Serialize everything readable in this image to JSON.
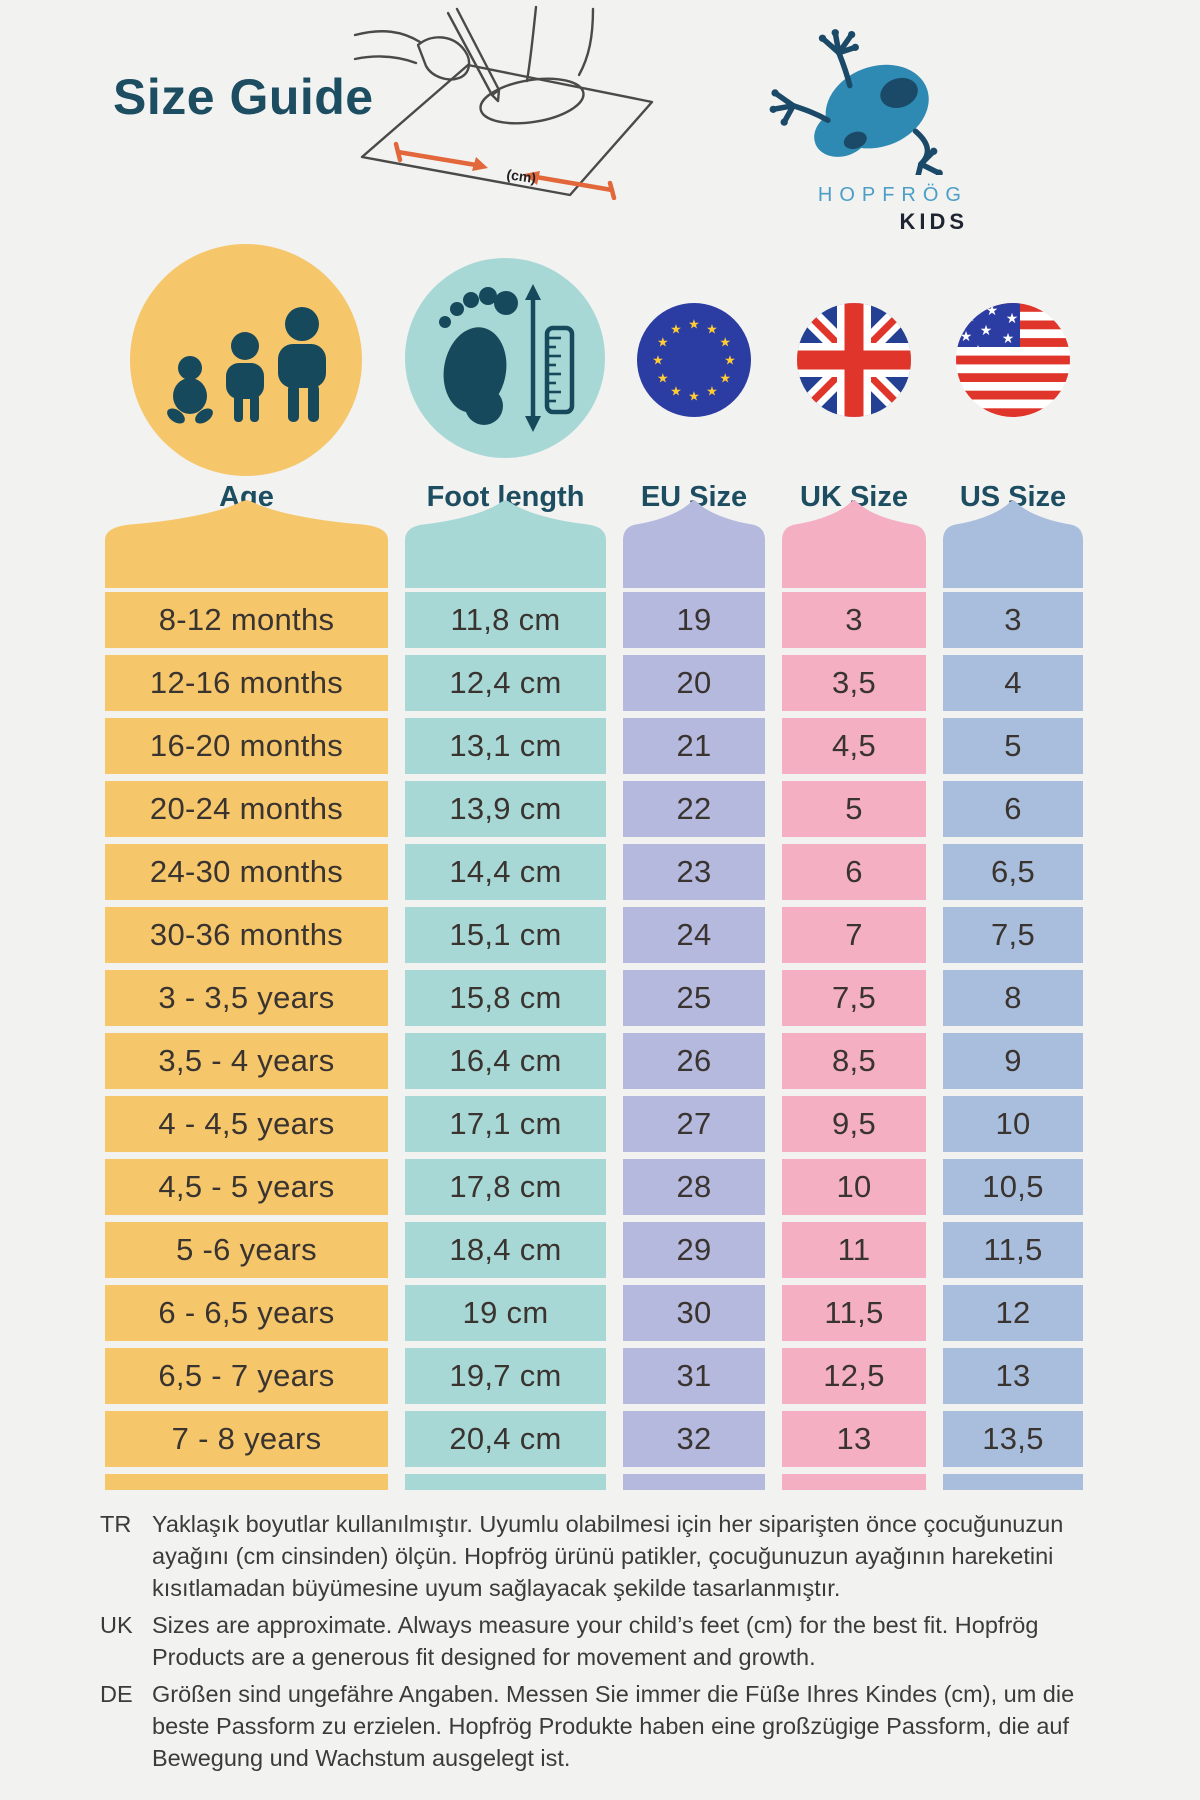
{
  "header": {
    "title": "Size Guide",
    "brand_name": "HOPFRÖG",
    "brand_sub": "KIDS",
    "illustration_cm_label": "(cm)"
  },
  "colors": {
    "title_teal": "#1D4D60",
    "icon_dark_teal": "#17495C",
    "age": "#F6C66B",
    "foot": "#A8D8D5",
    "eu": "#B5B9DE",
    "uk": "#F4AFC3",
    "us": "#A9BEDC",
    "background": "#F2F2F1",
    "arrow_orange": "#E2673B",
    "frog_blue": "#2E8AB2",
    "frog_dark": "#1A4A68"
  },
  "table": {
    "columns": [
      {
        "key": "age",
        "label": "Age",
        "color": "#F6C66B",
        "icon": "family-icon"
      },
      {
        "key": "foot",
        "label": "Foot length",
        "color": "#A8D8D5",
        "icon": "foot-ruler-icon"
      },
      {
        "key": "eu",
        "label": "EU Size",
        "color": "#B5B9DE",
        "icon": "eu-flag-icon"
      },
      {
        "key": "uk",
        "label": "UK Size",
        "color": "#F4AFC3",
        "icon": "uk-flag-icon"
      },
      {
        "key": "us",
        "label": "US Size",
        "color": "#A9BEDC",
        "icon": "us-flag-icon"
      }
    ]
  },
  "chart_data": {
    "type": "table",
    "title": "Size Guide",
    "columns": [
      "Age",
      "Foot length",
      "EU Size",
      "UK Size",
      "US Size"
    ],
    "rows": [
      [
        "8-12 months",
        "11,8 cm",
        "19",
        "3",
        "3"
      ],
      [
        "12-16 months",
        "12,4 cm",
        "20",
        "3,5",
        "4"
      ],
      [
        "16-20 months",
        "13,1 cm",
        "21",
        "4,5",
        "5"
      ],
      [
        "20-24 months",
        "13,9 cm",
        "22",
        "5",
        "6"
      ],
      [
        "24-30 months",
        "14,4 cm",
        "23",
        "6",
        "6,5"
      ],
      [
        "30-36 months",
        "15,1 cm",
        "24",
        "7",
        "7,5"
      ],
      [
        "3 - 3,5 years",
        "15,8 cm",
        "25",
        "7,5",
        "8"
      ],
      [
        "3,5 - 4 years",
        "16,4 cm",
        "26",
        "8,5",
        "9"
      ],
      [
        "4 - 4,5 years",
        "17,1 cm",
        "27",
        "9,5",
        "10"
      ],
      [
        "4,5 - 5 years",
        "17,8 cm",
        "28",
        "10",
        "10,5"
      ],
      [
        "5 -6 years",
        "18,4 cm",
        "29",
        "11",
        "11,5"
      ],
      [
        "6 - 6,5 years",
        "19 cm",
        "30",
        "11,5",
        "12"
      ],
      [
        "6,5 - 7 years",
        "19,7 cm",
        "31",
        "12,5",
        "13"
      ],
      [
        "7 - 8 years",
        "20,4 cm",
        "32",
        "13",
        "13,5"
      ]
    ]
  },
  "notes": [
    {
      "lang": "TR",
      "text": "Yaklaşık boyutlar kullanılmıştır. Uyumlu olabilmesi için her siparişten önce çocuğunuzun ayağını (cm cinsinden) ölçün. Hopfrög ürünü patikler, çocuğunuzun ayağının hareketini kısıtlamadan büyümesine uyum sağlayacak şekilde tasarlanmıştır."
    },
    {
      "lang": "UK",
      "text": "Sizes are approximate. Always measure your child’s feet (cm) for the best fit. Hopfrög Products are a generous fit designed for movement and growth."
    },
    {
      "lang": "DE",
      "text": "Größen sind ungefähre Angaben. Messen Sie immer die Füße Ihres Kindes (cm), um die beste Passform zu erzielen. Hopfrög Produkte haben eine großzügige Passform, die auf Bewegung und Wachstum ausgelegt ist."
    }
  ]
}
